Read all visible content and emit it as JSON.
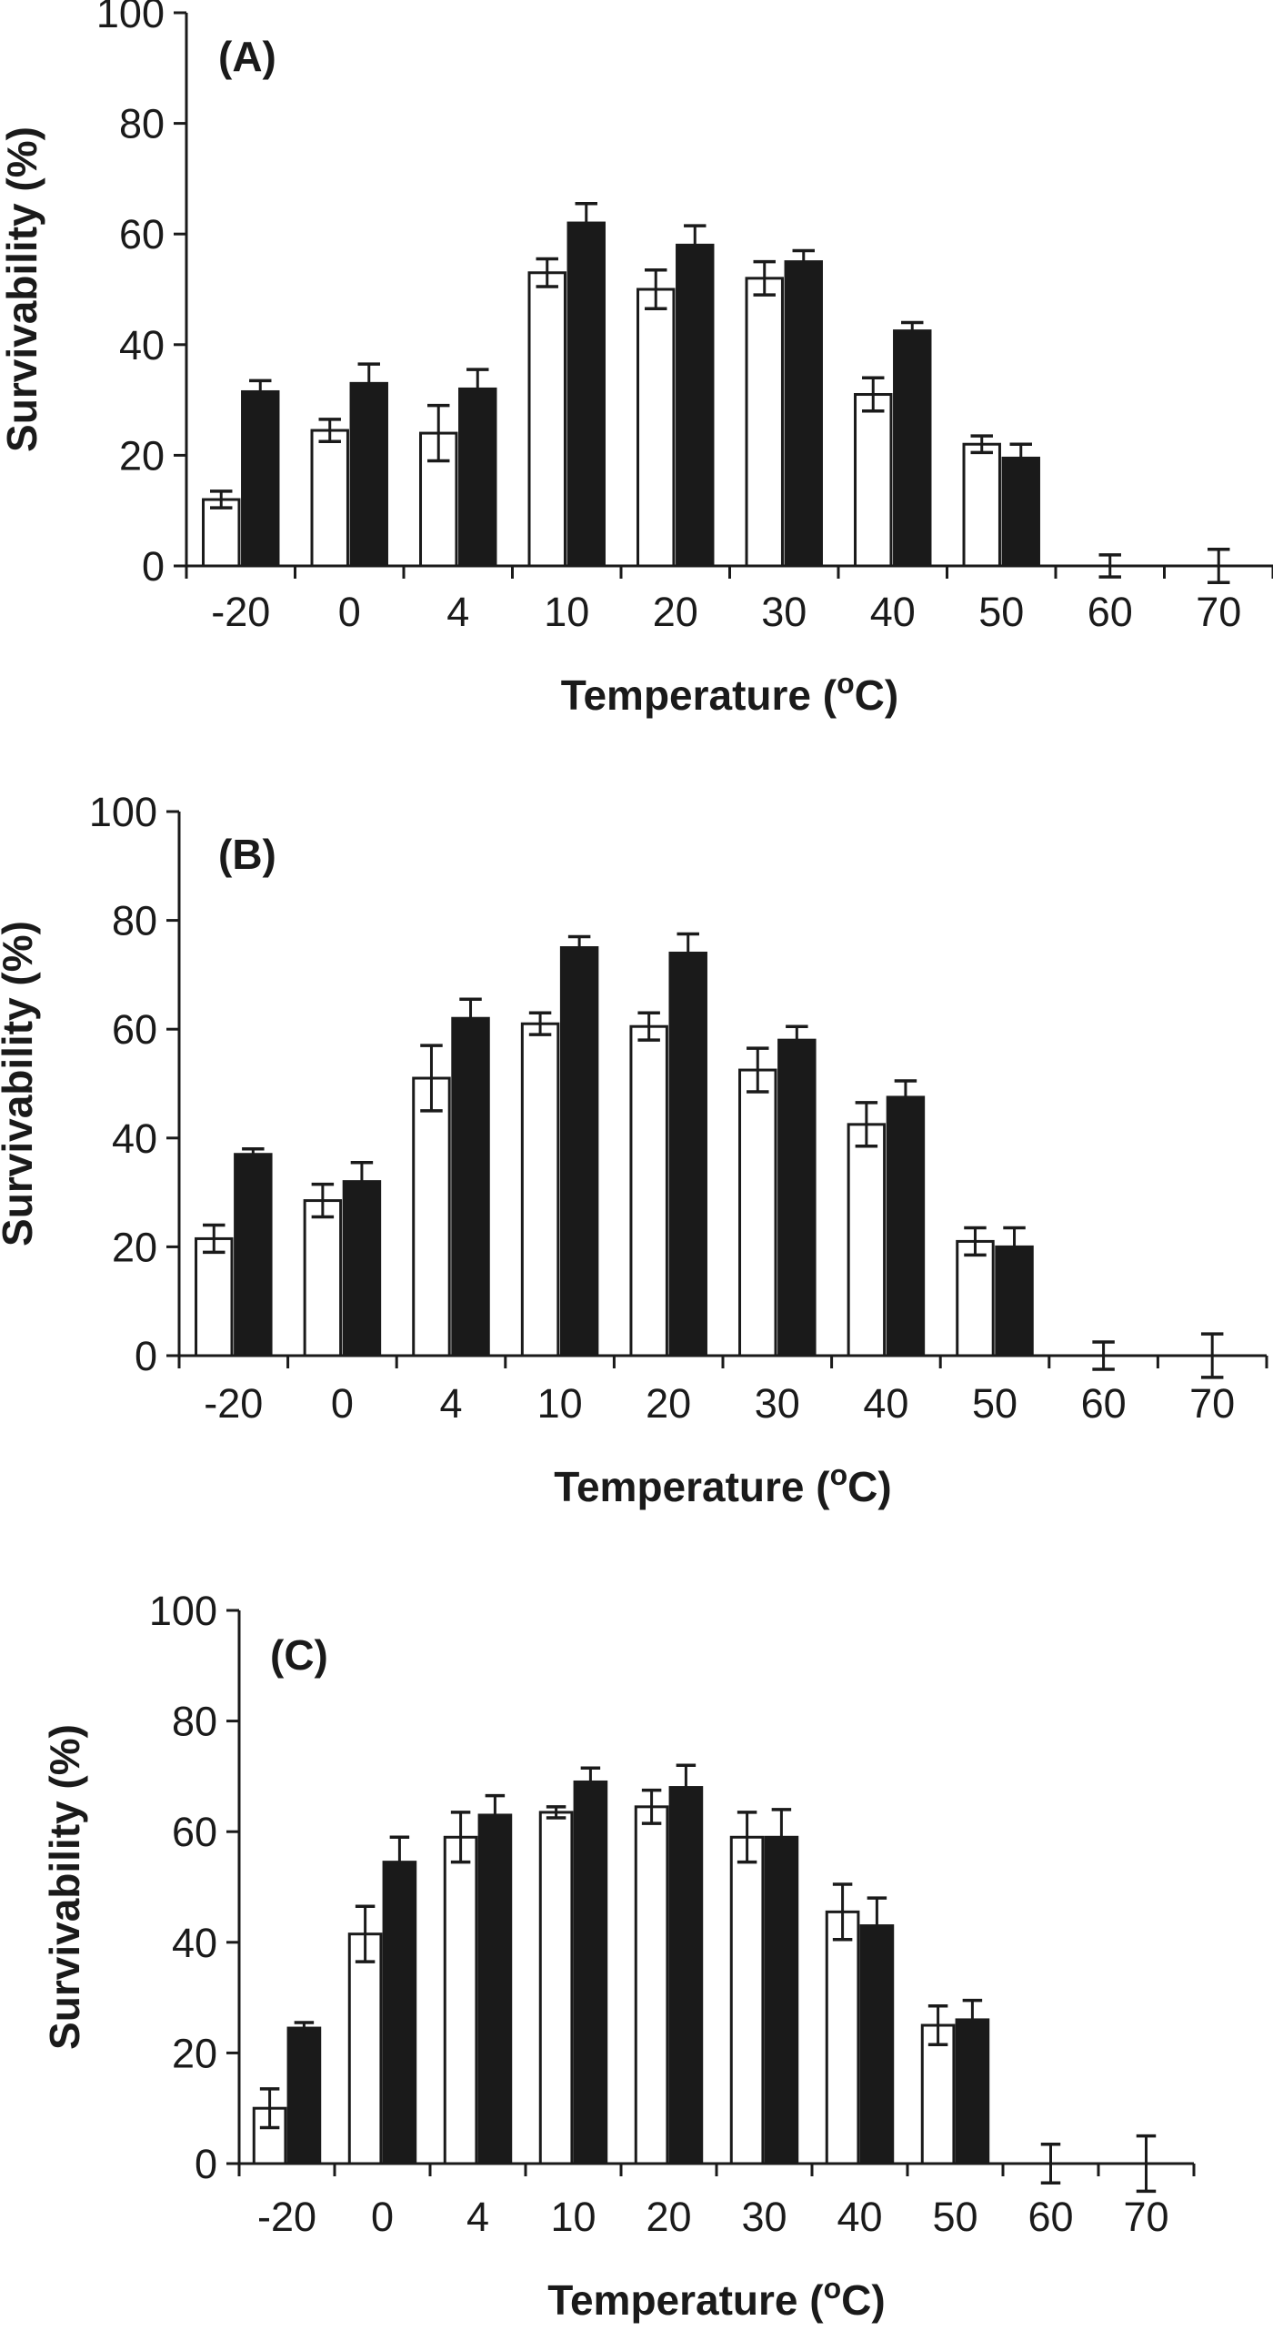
{
  "chart_data": [
    {
      "type": "bar",
      "panel_label": "(A)",
      "categories": [
        "-20",
        "0",
        "4",
        "10",
        "20",
        "30",
        "40",
        "50",
        "60",
        "70"
      ],
      "series": [
        {
          "name": "open bars",
          "fill": "#ffffff",
          "values": [
            12,
            24.5,
            24,
            53,
            50,
            52,
            31,
            22,
            0,
            0
          ],
          "errors": [
            1.5,
            2,
            5,
            2.5,
            3.5,
            3,
            3,
            1.5,
            2,
            3
          ]
        },
        {
          "name": "filled bars",
          "fill": "#1a1a1a",
          "values": [
            31.5,
            33,
            32,
            62,
            58,
            55,
            42.5,
            19.5,
            null,
            null
          ],
          "errors": [
            2,
            3.5,
            3.5,
            3.5,
            3.5,
            2,
            1.5,
            2.5,
            null,
            null
          ]
        }
      ],
      "ylim": [
        0,
        100
      ],
      "yticks": [
        "0",
        "20",
        "40",
        "60",
        "80",
        "100"
      ],
      "xlabel": {
        "main": "Temperature (",
        "sup": "o",
        "unit": "C)"
      },
      "ylabel": "Survivability (%)"
    },
    {
      "type": "bar",
      "panel_label": "(B)",
      "categories": [
        "-20",
        "0",
        "4",
        "10",
        "20",
        "30",
        "40",
        "50",
        "60",
        "70"
      ],
      "series": [
        {
          "name": "open bars",
          "fill": "#ffffff",
          "values": [
            21.5,
            28.5,
            51,
            61,
            60.5,
            52.5,
            42.5,
            21,
            0,
            0
          ],
          "errors": [
            2.5,
            3,
            6,
            2,
            2.5,
            4,
            4,
            2.5,
            2.5,
            4
          ]
        },
        {
          "name": "filled bars",
          "fill": "#1a1a1a",
          "values": [
            37,
            32,
            62,
            75,
            74,
            58,
            47.5,
            20,
            null,
            null
          ],
          "errors": [
            1,
            3.5,
            3.5,
            2,
            3.5,
            2.5,
            3,
            3.5,
            null,
            null
          ]
        }
      ],
      "ylim": [
        0,
        100
      ],
      "yticks": [
        "0",
        "20",
        "40",
        "60",
        "80",
        "100"
      ],
      "xlabel": {
        "main": "Temperature (",
        "sup": "o",
        "unit": "C)"
      },
      "ylabel": "Survivability (%)"
    },
    {
      "type": "bar",
      "panel_label": "(C)",
      "categories": [
        "-20",
        "0",
        "4",
        "10",
        "20",
        "30",
        "40",
        "50",
        "60",
        "70"
      ],
      "series": [
        {
          "name": "open bars",
          "fill": "#ffffff",
          "values": [
            10,
            41.5,
            59,
            63.5,
            64.5,
            59,
            45.5,
            25,
            0,
            0
          ],
          "errors": [
            3.5,
            5,
            4.5,
            1,
            3,
            4.5,
            5,
            3.5,
            3.5,
            5
          ]
        },
        {
          "name": "filled bars",
          "fill": "#1a1a1a",
          "values": [
            24.5,
            54.5,
            63,
            69,
            68,
            59,
            43,
            26,
            null,
            null
          ],
          "errors": [
            1,
            4.5,
            3.5,
            2.5,
            4,
            5,
            5,
            3.5,
            null,
            null
          ]
        }
      ],
      "ylim": [
        0,
        100
      ],
      "yticks": [
        "0",
        "20",
        "40",
        "60",
        "80",
        "100"
      ],
      "xlabel": {
        "main": "Temperature (",
        "sup": "o",
        "unit": "C)"
      },
      "ylabel": "Survivability (%)"
    }
  ]
}
